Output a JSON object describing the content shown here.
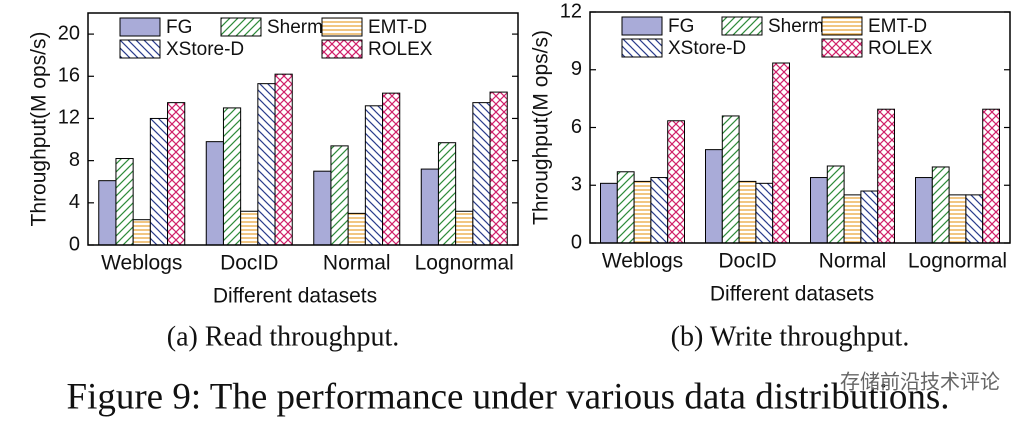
{
  "chart_data": [
    {
      "type": "bar",
      "caption": "(a) Read throughput.",
      "ylabel": "Throughput(M ops/s)",
      "xlabel": "Different datasets",
      "categories": [
        "Weblogs",
        "DocID",
        "Normal",
        "Lognormal"
      ],
      "ylim": [
        0,
        22
      ],
      "yticks": [
        0,
        4,
        8,
        12,
        16,
        20
      ],
      "series": [
        {
          "name": "FG",
          "color": "#a9abd8",
          "hatch": "solid",
          "values": [
            6.1,
            9.8,
            7.0,
            7.2
          ]
        },
        {
          "name": "Sherman",
          "color": "#2e8b3a",
          "hatch": "/",
          "values": [
            8.2,
            13.0,
            9.4,
            9.7
          ]
        },
        {
          "name": "EMT-D",
          "color": "#e8a030",
          "hatch": "-",
          "values": [
            2.4,
            3.2,
            3.0,
            3.2
          ]
        },
        {
          "name": "XStore-D",
          "color": "#2a3c8c",
          "hatch": "\\",
          "values": [
            12.0,
            15.3,
            13.2,
            13.5
          ]
        },
        {
          "name": "ROLEX",
          "color": "#d0206a",
          "hatch": "x",
          "values": [
            13.5,
            16.2,
            14.4,
            14.5
          ]
        }
      ]
    },
    {
      "type": "bar",
      "caption": "(b) Write throughput.",
      "ylabel": "Throughput(M ops/s)",
      "xlabel": "Different datasets",
      "categories": [
        "Weblogs",
        "DocID",
        "Normal",
        "Lognormal"
      ],
      "ylim": [
        0,
        12
      ],
      "yticks": [
        0,
        3,
        6,
        9,
        12
      ],
      "series": [
        {
          "name": "FG",
          "color": "#a9abd8",
          "hatch": "solid",
          "values": [
            3.1,
            4.85,
            3.4,
            3.4
          ]
        },
        {
          "name": "Sherman",
          "color": "#2e8b3a",
          "hatch": "/",
          "values": [
            3.7,
            6.6,
            4.0,
            3.95
          ]
        },
        {
          "name": "EMT-D",
          "color": "#e8a030",
          "hatch": "-",
          "values": [
            3.2,
            3.2,
            2.5,
            2.5
          ]
        },
        {
          "name": "XStore-D",
          "color": "#2a3c8c",
          "hatch": "\\",
          "values": [
            3.4,
            3.1,
            2.7,
            2.5
          ]
        },
        {
          "name": "ROLEX",
          "color": "#d0206a",
          "hatch": "x",
          "values": [
            6.35,
            9.35,
            6.95,
            6.95
          ]
        }
      ]
    }
  ],
  "figure_caption": "Figure 9: The performance under various data distributions.",
  "watermark": "存储前沿技术评论"
}
